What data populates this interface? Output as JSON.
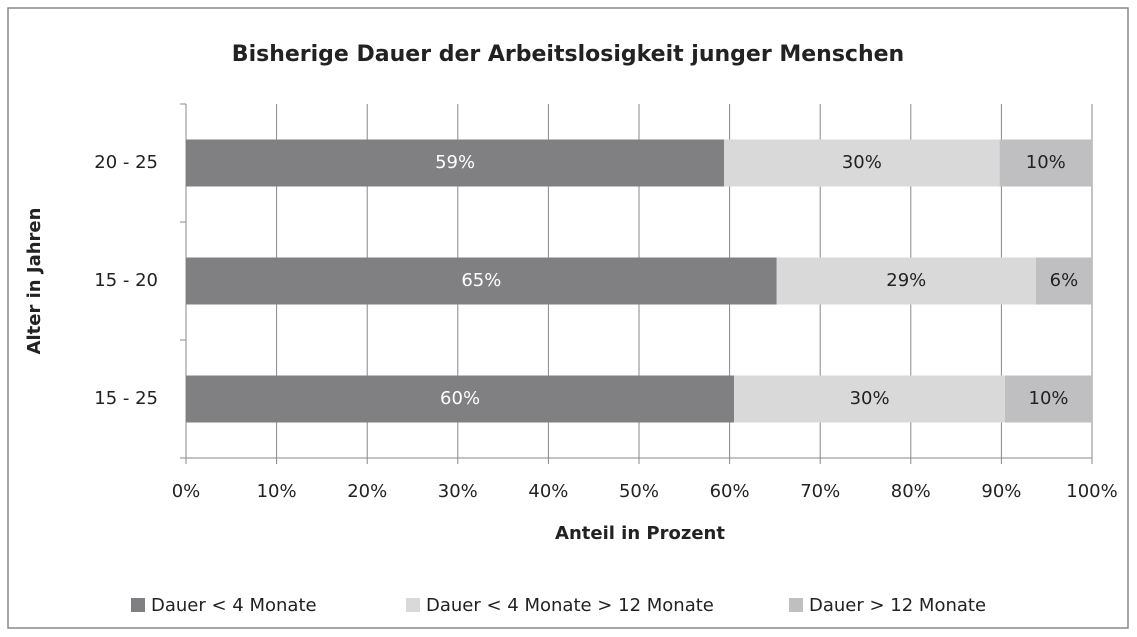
{
  "chart_data": {
    "type": "stacked_barh",
    "title": "Bisherige Dauer der Arbeitslosigkeit junger Menschen",
    "xlabel": "Anteil in Prozent",
    "ylabel": "Alter in Jahren",
    "categories": [
      "20 - 25",
      "15 - 20",
      "15 - 25"
    ],
    "series": [
      {
        "name": "Dauer < 4 Monate",
        "color": "#808083",
        "values": [
          59.4,
          65.2,
          60.5
        ],
        "value_labels": [
          "59%",
          "65%",
          "60%"
        ]
      },
      {
        "name": "Dauer < 4 Monate > 12 Monate",
        "color": "#d9d9da",
        "values": [
          30.4,
          28.6,
          29.9
        ],
        "value_labels": [
          "30%",
          "29%",
          "30%"
        ]
      },
      {
        "name": "Dauer > 12 Monate",
        "color": "#bfbfc1",
        "values": [
          10.2,
          6.2,
          9.6
        ],
        "value_labels": [
          "10%",
          "6%",
          "10%"
        ]
      }
    ],
    "xlim": [
      0,
      100
    ],
    "xticks": [
      {
        "value": 0,
        "label": "0%"
      },
      {
        "value": 10,
        "label": "10%"
      },
      {
        "value": 20,
        "label": "20%"
      },
      {
        "value": 30,
        "label": "30%"
      },
      {
        "value": 40,
        "label": "40%"
      },
      {
        "value": 50,
        "label": "50%"
      },
      {
        "value": 60,
        "label": "60%"
      },
      {
        "value": 70,
        "label": "70%"
      },
      {
        "value": 80,
        "label": "80%"
      },
      {
        "value": 90,
        "label": "90%"
      },
      {
        "value": 100,
        "label": "100%"
      }
    ],
    "grid": true,
    "legend": "bottom"
  }
}
